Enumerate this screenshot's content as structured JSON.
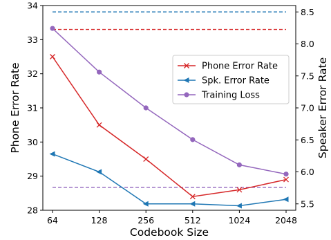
{
  "chart_data": {
    "type": "line",
    "title": "",
    "xlabel": "Codebook Size",
    "ylabel_left": "Phone Error Rate",
    "ylabel_right": "Speaker Error Rate",
    "x_scale": "log2",
    "categories": [
      "64",
      "128",
      "256",
      "512",
      "1024",
      "2048"
    ],
    "x": [
      64,
      128,
      256,
      512,
      1024,
      2048
    ],
    "ylim_left": [
      28,
      34
    ],
    "ylim_right": [
      5.4,
      8.6
    ],
    "yticks_left": [
      "28",
      "29",
      "30",
      "31",
      "32",
      "33",
      "34"
    ],
    "yticks_right": [
      "5.5",
      "6.0",
      "6.5",
      "7.0",
      "7.5",
      "8.0",
      "8.5"
    ],
    "grid": false,
    "legend_position": "center-right",
    "series": [
      {
        "name": "Phone Error Rate",
        "axis": "left",
        "color": "#d62728",
        "marker": "x",
        "values": [
          32.5,
          30.5,
          29.5,
          28.4,
          28.6,
          28.9
        ]
      },
      {
        "name": "Spk. Error Rate",
        "axis": "right",
        "color": "#1f77b4",
        "marker": "triangle-left",
        "values": [
          6.28,
          6.0,
          5.5,
          5.5,
          5.47,
          5.57
        ]
      },
      {
        "name": "Training Loss",
        "axis": "left",
        "color": "#9467bd",
        "marker": "circle",
        "values": [
          33.33,
          32.05,
          31.0,
          30.07,
          29.33,
          29.06
        ]
      }
    ],
    "reference_lines": [
      {
        "axis": "right",
        "value": 8.5,
        "color": "#1f77b4",
        "style": "dashed"
      },
      {
        "axis": "left",
        "value": 33.3,
        "color": "#d62728",
        "style": "dashed"
      },
      {
        "axis": "left",
        "value": 28.67,
        "color": "#9467bd",
        "style": "dashed"
      }
    ]
  }
}
